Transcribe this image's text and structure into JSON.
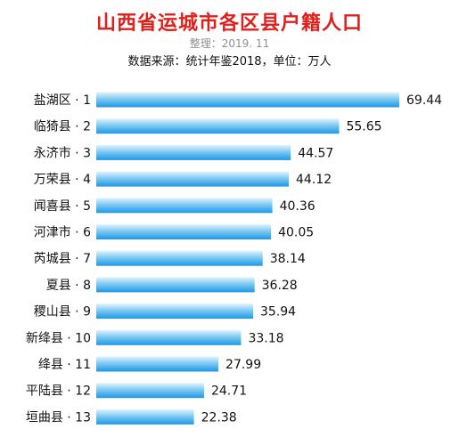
{
  "chart_data": {
    "type": "bar",
    "orientation": "horizontal",
    "title": "山西省运城市各区县户籍人口",
    "subtitle": "整理：2019. 11",
    "source": "数据来源：统计年鉴2018，单位：万人",
    "categories": [
      "盐湖区 · 1",
      "临猗县 · 2",
      "永济市 · 3",
      "万荣县 · 4",
      "闻喜县 · 5",
      "河津市 · 6",
      "芮城县 · 7",
      "夏县 · 8",
      "稷山县 · 9",
      "新绛县 · 10",
      "绛县 · 11",
      "平陆县 · 12",
      "垣曲县 · 13"
    ],
    "values": [
      69.44,
      55.65,
      44.57,
      44.12,
      40.36,
      40.05,
      38.14,
      36.28,
      35.94,
      33.18,
      27.99,
      24.71,
      22.38
    ],
    "value_labels": [
      "69.44",
      "55.65",
      "44.57",
      "44.12",
      "40.36",
      "40.05",
      "38.14",
      "36.28",
      "35.94",
      "33.18",
      "27.99",
      "24.71",
      "22.38"
    ],
    "xlim": [
      0,
      69.44
    ],
    "grid": false,
    "colors": {
      "bar_light": "#e3f4fd",
      "bar_mid": "#7fcaf2",
      "bar_dark": "#1d98e6",
      "title": "#e0201c"
    }
  }
}
